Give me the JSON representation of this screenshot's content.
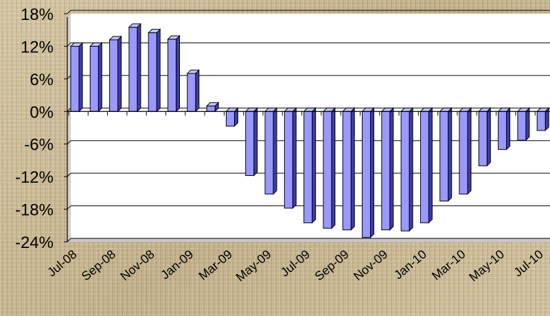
{
  "chart_data": {
    "type": "bar",
    "title": "",
    "xlabel": "",
    "ylabel": "",
    "ylim": [
      -24,
      18
    ],
    "y_ticks": [
      18,
      12,
      6,
      0,
      -6,
      -12,
      -18,
      -24
    ],
    "y_tick_labels": [
      "18%",
      "12%",
      "6%",
      "0%",
      "-6%",
      "-12%",
      "-18%",
      "-24%"
    ],
    "grid": true,
    "bar_color": "#9999ff",
    "categories": [
      "Jul-08",
      "Aug-08",
      "Sep-08",
      "Oct-08",
      "Nov-08",
      "Dec-08",
      "Jan-09",
      "Feb-09",
      "Mar-09",
      "Apr-09",
      "May-09",
      "Jun-09",
      "Jul-09",
      "Aug-09",
      "Sep-09",
      "Oct-09",
      "Nov-09",
      "Dec-09",
      "Jan-10",
      "Feb-10",
      "Mar-10",
      "Apr-10",
      "May-10",
      "Jun-10",
      "Jul-10",
      "Aug-10"
    ],
    "x_tick_labels": [
      "Jul-08",
      "Sep-08",
      "Nov-08",
      "Jan-09",
      "Mar-09",
      "May-09",
      "Jul-09",
      "Sep-09",
      "Nov-09",
      "Jan-10",
      "Mar-10",
      "May-10",
      "Jul-10"
    ],
    "values": [
      12,
      12,
      13.2,
      15.5,
      14.5,
      13.3,
      7,
      1,
      -2.7,
      -11.8,
      -15.2,
      -17.8,
      -20.5,
      -21.5,
      -21.8,
      -23.2,
      -21.8,
      -22,
      -20.5,
      -16.5,
      -15.2,
      -10,
      -7,
      -5.3,
      -3.5,
      -2.5
    ]
  }
}
